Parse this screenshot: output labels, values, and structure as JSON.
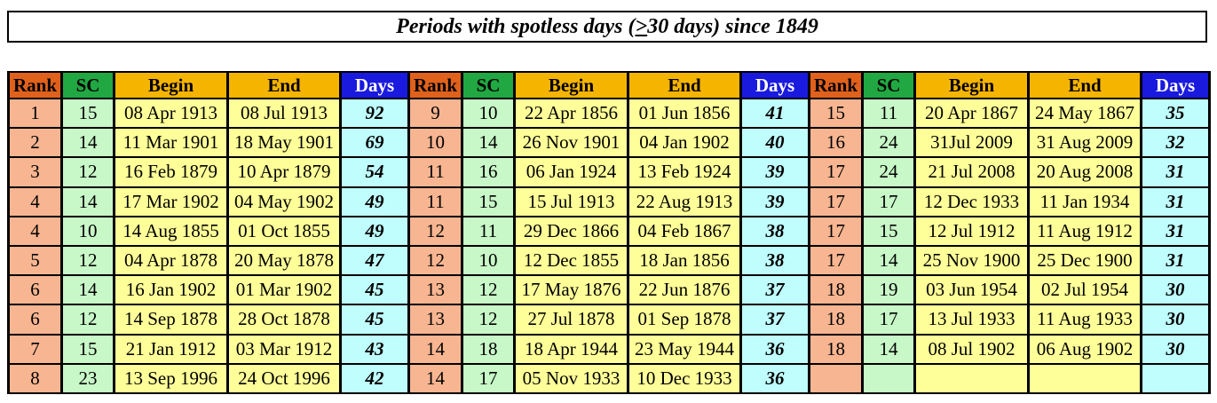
{
  "title": {
    "prefix": "Periods with spotless days (",
    "symbol": ">",
    "suffix": " 30 days) since 1849"
  },
  "headers": {
    "rank": "Rank",
    "sc": "SC",
    "begin": "Begin",
    "end": "End",
    "days": "Days"
  },
  "colors": {
    "rank_header": "#e0611c",
    "sc_header": "#21a842",
    "date_header": "#f5b400",
    "days_header": "#1a1adf",
    "rank_cell": "#f7b591",
    "sc_cell": "#c8f7c8",
    "date_cell": "#ffff99",
    "days_cell": "#c0fdfd"
  },
  "groups": [
    {
      "rows": [
        {
          "rank": "1",
          "sc": "15",
          "begin": "08 Apr 1913",
          "end": "08 Jul 1913",
          "days": "92"
        },
        {
          "rank": "2",
          "sc": "14",
          "begin": "11 Mar 1901",
          "end": "18 May 1901",
          "days": "69"
        },
        {
          "rank": "3",
          "sc": "12",
          "begin": "16 Feb 1879",
          "end": "10 Apr 1879",
          "days": "54"
        },
        {
          "rank": "4",
          "sc": "14",
          "begin": "17 Mar 1902",
          "end": "04 May 1902",
          "days": "49"
        },
        {
          "rank": "4",
          "sc": "10",
          "begin": "14 Aug 1855",
          "end": "01 Oct 1855",
          "days": "49"
        },
        {
          "rank": "5",
          "sc": "12",
          "begin": "04 Apr 1878",
          "end": "20 May 1878",
          "days": "47"
        },
        {
          "rank": "6",
          "sc": "14",
          "begin": "16 Jan 1902",
          "end": "01 Mar 1902",
          "days": "45"
        },
        {
          "rank": "6",
          "sc": "12",
          "begin": "14 Sep 1878",
          "end": "28 Oct 1878",
          "days": "45"
        },
        {
          "rank": "7",
          "sc": "15",
          "begin": "21 Jan 1912",
          "end": "03 Mar 1912",
          "days": "43"
        },
        {
          "rank": "8",
          "sc": "23",
          "begin": "13 Sep 1996",
          "end": "24 Oct 1996",
          "days": "42"
        }
      ]
    },
    {
      "rows": [
        {
          "rank": "9",
          "sc": "10",
          "begin": "22 Apr 1856",
          "end": "01 Jun 1856",
          "days": "41"
        },
        {
          "rank": "10",
          "sc": "14",
          "begin": "26 Nov 1901",
          "end": "04 Jan 1902",
          "days": "40"
        },
        {
          "rank": "11",
          "sc": "16",
          "begin": "06 Jan 1924",
          "end": "13 Feb 1924",
          "days": "39"
        },
        {
          "rank": "11",
          "sc": "15",
          "begin": "15 Jul 1913",
          "end": "22 Aug 1913",
          "days": "39"
        },
        {
          "rank": "12",
          "sc": "11",
          "begin": "29 Dec 1866",
          "end": "04 Feb 1867",
          "days": "38"
        },
        {
          "rank": "12",
          "sc": "10",
          "begin": "12 Dec 1855",
          "end": "18 Jan 1856",
          "days": "38"
        },
        {
          "rank": "13",
          "sc": "12",
          "begin": "17 May 1876",
          "end": "22 Jun 1876",
          "days": "37"
        },
        {
          "rank": "13",
          "sc": "12",
          "begin": "27 Jul 1878",
          "end": "01 Sep 1878",
          "days": "37"
        },
        {
          "rank": "14",
          "sc": "18",
          "begin": "18 Apr 1944",
          "end": "23 May 1944",
          "days": "36"
        },
        {
          "rank": "14",
          "sc": "17",
          "begin": "05 Nov 1933",
          "end": "10 Dec 1933",
          "days": "36"
        }
      ]
    },
    {
      "rows": [
        {
          "rank": "15",
          "sc": "11",
          "begin": "20 Apr 1867",
          "end": "24 May 1867",
          "days": "35"
        },
        {
          "rank": "16",
          "sc": "24",
          "begin": "31Jul 2009",
          "end": "31 Aug 2009",
          "days": "32"
        },
        {
          "rank": "17",
          "sc": "24",
          "begin": "21 Jul 2008",
          "end": "20 Aug 2008",
          "days": "31"
        },
        {
          "rank": "17",
          "sc": "17",
          "begin": "12 Dec 1933",
          "end": "11 Jan 1934",
          "days": "31"
        },
        {
          "rank": "17",
          "sc": "15",
          "begin": "12 Jul 1912",
          "end": "11 Aug 1912",
          "days": "31"
        },
        {
          "rank": "17",
          "sc": "14",
          "begin": "25 Nov 1900",
          "end": "25 Dec 1900",
          "days": "31"
        },
        {
          "rank": "18",
          "sc": "19",
          "begin": "03 Jun 1954",
          "end": "02 Jul 1954",
          "days": "30"
        },
        {
          "rank": "18",
          "sc": "17",
          "begin": "13 Jul 1933",
          "end": "11 Aug 1933",
          "days": "30"
        },
        {
          "rank": "18",
          "sc": "14",
          "begin": "08 Jul 1902",
          "end": "06 Aug 1902",
          "days": "30"
        },
        {
          "rank": "",
          "sc": "",
          "begin": "",
          "end": "",
          "days": ""
        }
      ]
    }
  ]
}
